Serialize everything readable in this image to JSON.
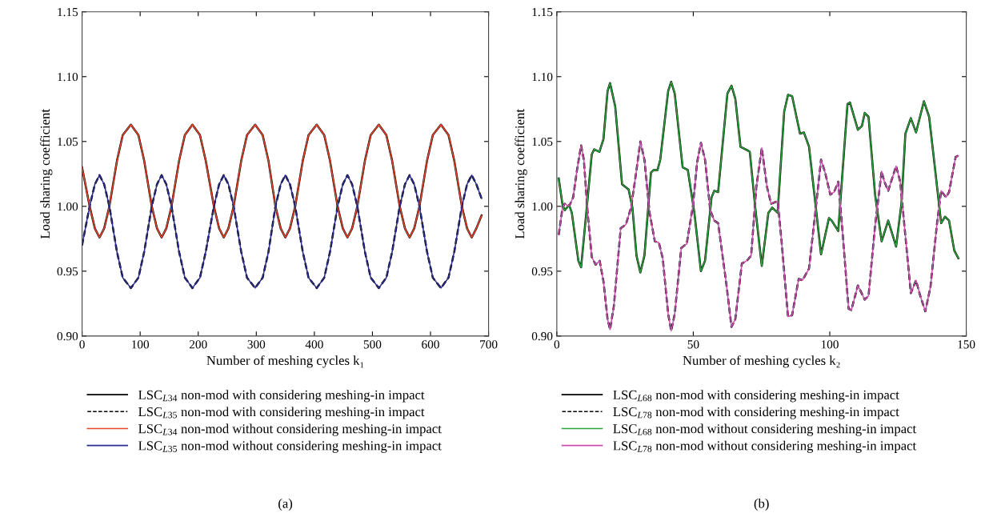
{
  "chart_data": [
    {
      "type": "line",
      "xlabel": "Number of meshing cycles k₁",
      "ylabel": "Load sharing coefficient",
      "xlim": [
        0,
        700
      ],
      "xticks": [
        0,
        100,
        200,
        300,
        400,
        500,
        600,
        700
      ],
      "ylim": [
        0.9,
        1.15
      ],
      "yticks": [
        {
          "value": 0.9,
          "label": "0.90"
        },
        {
          "value": 0.95,
          "label": "0.95"
        },
        {
          "value": 1.0,
          "label": "1.00"
        },
        {
          "value": 1.05,
          "label": "1.05"
        },
        {
          "value": 1.1,
          "label": "1.10"
        },
        {
          "value": 1.15,
          "label": "1.15"
        }
      ],
      "grid": false,
      "legend": "bottom",
      "annotations": [
        "(a)"
      ],
      "x": [
        0,
        13,
        22,
        30,
        38,
        47,
        60,
        70,
        84,
        97,
        107,
        120,
        129,
        137,
        145,
        154,
        167,
        177,
        190,
        203,
        213,
        227,
        236,
        244,
        252,
        261,
        274,
        284,
        298,
        311,
        321,
        333,
        342,
        350,
        358,
        367,
        380,
        390,
        404,
        417,
        427,
        440,
        449,
        457,
        465,
        474,
        487,
        497,
        511,
        524,
        534,
        547,
        556,
        564,
        572,
        581,
        594,
        604,
        618,
        631,
        641,
        654,
        663,
        671,
        679,
        688
      ],
      "series": [
        {
          "name": "LSC$_{L34}$ non-mod with considering meshing-in impact",
          "color": "#000000",
          "line_style": "solid",
          "values": [
            1.03,
            1.0,
            0.983,
            0.976,
            0.983,
            1.0,
            1.035,
            1.055,
            1.063,
            1.055,
            1.035,
            1.0,
            0.983,
            0.976,
            0.983,
            1.0,
            1.035,
            1.055,
            1.063,
            1.055,
            1.035,
            1.0,
            0.983,
            0.976,
            0.983,
            1.0,
            1.035,
            1.055,
            1.063,
            1.055,
            1.035,
            1.0,
            0.983,
            0.976,
            0.983,
            1.0,
            1.035,
            1.055,
            1.063,
            1.055,
            1.035,
            1.0,
            0.983,
            0.976,
            0.983,
            1.0,
            1.035,
            1.055,
            1.063,
            1.055,
            1.035,
            1.0,
            0.983,
            0.976,
            0.983,
            1.0,
            1.035,
            1.055,
            1.063,
            1.055,
            1.035,
            1.0,
            0.983,
            0.976,
            0.983,
            0.993
          ]
        },
        {
          "name": "LSC$_{L35}$ non-mod with considering meshing-in impact",
          "color": "#000000",
          "line_style": "dashed",
          "values": [
            0.97,
            1.0,
            1.017,
            1.024,
            1.017,
            1.0,
            0.965,
            0.945,
            0.937,
            0.945,
            0.965,
            1.0,
            1.017,
            1.024,
            1.017,
            1.0,
            0.965,
            0.945,
            0.937,
            0.945,
            0.965,
            1.0,
            1.017,
            1.024,
            1.017,
            1.0,
            0.965,
            0.945,
            0.937,
            0.945,
            0.965,
            1.0,
            1.017,
            1.024,
            1.017,
            1.0,
            0.965,
            0.945,
            0.937,
            0.945,
            0.965,
            1.0,
            1.017,
            1.024,
            1.017,
            1.0,
            0.965,
            0.945,
            0.937,
            0.945,
            0.965,
            1.0,
            1.017,
            1.024,
            1.017,
            1.0,
            0.965,
            0.945,
            0.937,
            0.945,
            0.965,
            1.0,
            1.017,
            1.024,
            1.017,
            1.006
          ]
        },
        {
          "name": "LSC$_{L34}$ non-mod without considering meshing-in impact",
          "color": "#e8452a",
          "line_style": "solid",
          "values": [
            1.03,
            1.0,
            0.983,
            0.976,
            0.983,
            1.0,
            1.035,
            1.055,
            1.063,
            1.055,
            1.035,
            1.0,
            0.983,
            0.976,
            0.983,
            1.0,
            1.035,
            1.055,
            1.063,
            1.055,
            1.035,
            1.0,
            0.983,
            0.976,
            0.983,
            1.0,
            1.035,
            1.055,
            1.063,
            1.055,
            1.035,
            1.0,
            0.983,
            0.976,
            0.983,
            1.0,
            1.035,
            1.055,
            1.063,
            1.055,
            1.035,
            1.0,
            0.983,
            0.976,
            0.983,
            1.0,
            1.035,
            1.055,
            1.063,
            1.055,
            1.035,
            1.0,
            0.983,
            0.976,
            0.983,
            1.0,
            1.035,
            1.055,
            1.063,
            1.055,
            1.035,
            1.0,
            0.983,
            0.976,
            0.983,
            0.993
          ]
        },
        {
          "name": "LSC$_{L35}$ non-mod without considering meshing-in impact",
          "color": "#2b2c8f",
          "line_style": "solid",
          "values": [
            0.97,
            1.0,
            1.017,
            1.024,
            1.017,
            1.0,
            0.965,
            0.945,
            0.937,
            0.945,
            0.965,
            1.0,
            1.017,
            1.024,
            1.017,
            1.0,
            0.965,
            0.945,
            0.937,
            0.945,
            0.965,
            1.0,
            1.017,
            1.024,
            1.017,
            1.0,
            0.965,
            0.945,
            0.937,
            0.945,
            0.965,
            1.0,
            1.017,
            1.024,
            1.017,
            1.0,
            0.965,
            0.945,
            0.937,
            0.945,
            0.965,
            1.0,
            1.017,
            1.024,
            1.017,
            1.0,
            0.965,
            0.945,
            0.937,
            0.945,
            0.965,
            1.0,
            1.017,
            1.024,
            1.017,
            1.0,
            0.965,
            0.945,
            0.937,
            0.945,
            0.965,
            1.0,
            1.017,
            1.024,
            1.017,
            1.006
          ]
        }
      ]
    },
    {
      "type": "line",
      "xlabel": "Number of meshing cycles k₂",
      "ylabel": "Load sharing coefficient",
      "xlim": [
        0,
        150
      ],
      "xticks": [
        0,
        50,
        100,
        150
      ],
      "ylim": [
        0.9,
        1.15
      ],
      "yticks": [
        {
          "value": 0.9,
          "label": "0.90"
        },
        {
          "value": 0.95,
          "label": "0.95"
        },
        {
          "value": 1.0,
          "label": "1.00"
        },
        {
          "value": 1.05,
          "label": "1.05"
        },
        {
          "value": 1.1,
          "label": "1.10"
        },
        {
          "value": 1.15,
          "label": "1.15"
        }
      ],
      "grid": false,
      "legend": "bottom",
      "annotations": [
        "(b)"
      ],
      "series": [
        {
          "name": "LSC$_{L68}$ non-mod with considering meshing-in impact",
          "color": "#000000",
          "line_style": "solid",
          "x": [
            0.7,
            2.1,
            2.9,
            4.5,
            5.5,
            7.9,
            8.9,
            10.8,
            12.8,
            13.7,
            15.6,
            17.1,
            18.6,
            19.5,
            21.4,
            23.9,
            26.3,
            27.7,
            29.2,
            30.6,
            32.1,
            34.5,
            35.5,
            36.9,
            37.9,
            40.8,
            41.9,
            43.2,
            46.1,
            48.0,
            50.4,
            52.8,
            54.3,
            56.7,
            57.7,
            59.1,
            62.5,
            64.0,
            65.4,
            67.3,
            70.0,
            70.7,
            72.7,
            75.1,
            77.5,
            78.9,
            80.9,
            83.3,
            84.7,
            86.2,
            89.1,
            90.5,
            92.4,
            94.9,
            96.8,
            99.7,
            100.7,
            103.1,
            106.5,
            107.4,
            110.3,
            111.8,
            112.8,
            114.2,
            116.6,
            119.0,
            121.4,
            124.3,
            126.3,
            127.7,
            129.7,
            131.6,
            134.5,
            136.4,
            138.4,
            140.8,
            142.2,
            143.7,
            145.6,
            147.1
          ],
          "values": [
            1.0215,
            1.001,
            0.997,
            1.001,
            0.995,
            0.958,
            0.953,
            0.995,
            1.04,
            1.044,
            1.042,
            1.052,
            1.089,
            1.095,
            1.077,
            1.017,
            1.013,
            0.999,
            0.962,
            0.949,
            0.962,
            1.026,
            1.028,
            1.028,
            1.036,
            1.089,
            1.096,
            1.087,
            1.03,
            1.028,
            0.995,
            0.95,
            0.958,
            1.007,
            1.012,
            1.011,
            1.087,
            1.093,
            1.083,
            1.046,
            1.043,
            1.042,
            0.999,
            0.954,
            0.995,
            0.999,
            0.995,
            1.073,
            1.086,
            1.085,
            1.056,
            1.057,
            1.046,
            0.999,
            0.963,
            0.991,
            0.989,
            0.981,
            1.079,
            1.08,
            1.059,
            1.062,
            1.072,
            1.069,
            1.009,
            0.973,
            0.989,
            0.969,
            1.003,
            1.056,
            1.068,
            1.057,
            1.081,
            1.069,
            1.032,
            0.987,
            0.992,
            0.989,
            0.966,
            0.96
          ]
        },
        {
          "name": "LSC$_{L78}$ non-mod with considering meshing-in impact",
          "color": "#000000",
          "line_style": "dashed",
          "x": [
            0.7,
            2.1,
            2.9,
            4.5,
            6.0,
            7.4,
            8.9,
            9.9,
            11.3,
            12.8,
            14.2,
            15.7,
            17.1,
            18.6,
            19.5,
            20.9,
            23.4,
            25.3,
            27.2,
            29.2,
            30.6,
            32.1,
            34.0,
            35.9,
            37.4,
            38.8,
            40.8,
            41.9,
            43.2,
            45.6,
            47.6,
            49.9,
            51.4,
            52.8,
            54.3,
            56.2,
            57.7,
            59.1,
            62.0,
            64.0,
            65.4,
            67.8,
            69.6,
            71.2,
            73.1,
            75.1,
            77.0,
            78.5,
            80.9,
            82.3,
            84.7,
            86.2,
            88.6,
            90.0,
            92.4,
            94.9,
            96.8,
            98.3,
            100.2,
            101.6,
            103.1,
            104.5,
            106.9,
            107.9,
            110.3,
            112.8,
            114.2,
            116.6,
            119.0,
            120.0,
            121.4,
            124.3,
            125.8,
            128.3,
            129.7,
            131.6,
            133.0,
            135.0,
            136.9,
            139.3,
            140.8,
            142.6,
            143.7,
            146.1,
            147.1
          ],
          "values": [
            0.978,
            0.999,
            1.002,
            1.0,
            1.007,
            1.028,
            1.047,
            1.036,
            0.995,
            0.961,
            0.955,
            0.958,
            0.942,
            0.913,
            0.905,
            0.923,
            0.983,
            0.986,
            0.999,
            1.028,
            1.05,
            1.036,
            0.995,
            0.973,
            0.972,
            0.96,
            0.917,
            0.904,
            0.917,
            0.968,
            0.971,
            1.001,
            1.034,
            1.049,
            1.036,
            0.997,
            0.989,
            0.987,
            0.942,
            0.907,
            0.913,
            0.956,
            0.958,
            0.962,
            1.015,
            1.045,
            1.015,
            1.002,
            1.004,
            0.974,
            0.915,
            0.916,
            0.944,
            0.943,
            0.952,
            0.999,
            1.036,
            1.026,
            1.009,
            1.011,
            1.019,
            0.985,
            0.921,
            0.92,
            0.939,
            0.928,
            0.931,
            0.985,
            1.027,
            1.019,
            1.012,
            1.031,
            1.019,
            0.964,
            0.933,
            0.943,
            0.932,
            0.919,
            0.938,
            0.987,
            1.012,
            1.007,
            1.011,
            1.038,
            1.039
          ]
        },
        {
          "name": "LSC$_{L68}$ non-mod without considering meshing-in impact",
          "color": "#2aa53a",
          "line_style": "solid",
          "x": [
            0.7,
            2.1,
            2.9,
            4.5,
            5.5,
            7.9,
            8.9,
            10.8,
            12.8,
            13.7,
            15.6,
            17.1,
            18.6,
            19.5,
            21.4,
            23.9,
            26.3,
            27.7,
            29.2,
            30.6,
            32.1,
            34.5,
            35.5,
            36.9,
            37.9,
            40.8,
            41.9,
            43.2,
            46.1,
            48.0,
            50.4,
            52.8,
            54.3,
            56.7,
            57.7,
            59.1,
            62.5,
            64.0,
            65.4,
            67.3,
            70.0,
            70.7,
            72.7,
            75.1,
            77.5,
            78.9,
            80.9,
            83.3,
            84.7,
            86.2,
            89.1,
            90.5,
            92.4,
            94.9,
            96.8,
            99.7,
            100.7,
            103.1,
            106.5,
            107.4,
            110.3,
            111.8,
            112.8,
            114.2,
            116.6,
            119.0,
            121.4,
            124.3,
            126.3,
            127.7,
            129.7,
            131.6,
            134.5,
            136.4,
            138.4,
            140.8,
            142.2,
            143.7,
            145.6,
            147.1
          ],
          "values": [
            1.0215,
            1.001,
            0.997,
            1.001,
            0.995,
            0.958,
            0.953,
            0.995,
            1.04,
            1.044,
            1.042,
            1.052,
            1.089,
            1.095,
            1.077,
            1.017,
            1.013,
            0.999,
            0.962,
            0.949,
            0.962,
            1.026,
            1.028,
            1.028,
            1.036,
            1.089,
            1.096,
            1.087,
            1.03,
            1.028,
            0.995,
            0.95,
            0.958,
            1.007,
            1.012,
            1.011,
            1.087,
            1.093,
            1.083,
            1.046,
            1.043,
            1.042,
            0.999,
            0.954,
            0.995,
            0.999,
            0.995,
            1.073,
            1.086,
            1.085,
            1.056,
            1.057,
            1.046,
            0.999,
            0.963,
            0.991,
            0.989,
            0.981,
            1.079,
            1.08,
            1.059,
            1.062,
            1.072,
            1.069,
            1.009,
            0.973,
            0.989,
            0.969,
            1.003,
            1.056,
            1.068,
            1.057,
            1.081,
            1.069,
            1.032,
            0.987,
            0.992,
            0.989,
            0.966,
            0.96
          ]
        },
        {
          "name": "LSC$_{L78}$ non-mod without considering meshing-in impact",
          "color": "#cc4fb0",
          "line_style": "solid",
          "x": [
            0.7,
            2.1,
            2.9,
            4.5,
            6.0,
            7.4,
            8.9,
            9.9,
            11.3,
            12.8,
            14.2,
            15.7,
            17.1,
            18.6,
            19.5,
            20.9,
            23.4,
            25.3,
            27.2,
            29.2,
            30.6,
            32.1,
            34.0,
            35.9,
            37.4,
            38.8,
            40.8,
            41.9,
            43.2,
            45.6,
            47.6,
            49.9,
            51.4,
            52.8,
            54.3,
            56.2,
            57.7,
            59.1,
            62.0,
            64.0,
            65.4,
            67.8,
            69.6,
            71.2,
            73.1,
            75.1,
            77.0,
            78.5,
            80.9,
            82.3,
            84.7,
            86.2,
            88.6,
            90.0,
            92.4,
            94.9,
            96.8,
            98.3,
            100.2,
            101.6,
            103.1,
            104.5,
            106.9,
            107.9,
            110.3,
            112.8,
            114.2,
            116.6,
            119.0,
            120.0,
            121.4,
            124.3,
            125.8,
            128.3,
            129.7,
            131.6,
            133.0,
            135.0,
            136.9,
            139.3,
            140.8,
            142.6,
            143.7,
            146.1,
            147.1
          ],
          "values": [
            0.978,
            0.999,
            1.002,
            1.0,
            1.007,
            1.028,
            1.047,
            1.036,
            0.995,
            0.961,
            0.955,
            0.958,
            0.942,
            0.913,
            0.905,
            0.923,
            0.983,
            0.986,
            0.999,
            1.028,
            1.05,
            1.036,
            0.995,
            0.973,
            0.972,
            0.96,
            0.917,
            0.904,
            0.917,
            0.968,
            0.971,
            1.001,
            1.034,
            1.049,
            1.036,
            0.997,
            0.989,
            0.987,
            0.942,
            0.907,
            0.913,
            0.956,
            0.958,
            0.962,
            1.015,
            1.045,
            1.015,
            1.002,
            1.004,
            0.974,
            0.915,
            0.916,
            0.944,
            0.943,
            0.952,
            0.999,
            1.036,
            1.026,
            1.009,
            1.011,
            1.019,
            0.985,
            0.921,
            0.92,
            0.939,
            0.928,
            0.931,
            0.985,
            1.027,
            1.019,
            1.012,
            1.031,
            1.019,
            0.964,
            0.933,
            0.943,
            0.932,
            0.919,
            0.938,
            0.987,
            1.012,
            1.007,
            1.011,
            1.038,
            1.039
          ]
        }
      ]
    }
  ]
}
